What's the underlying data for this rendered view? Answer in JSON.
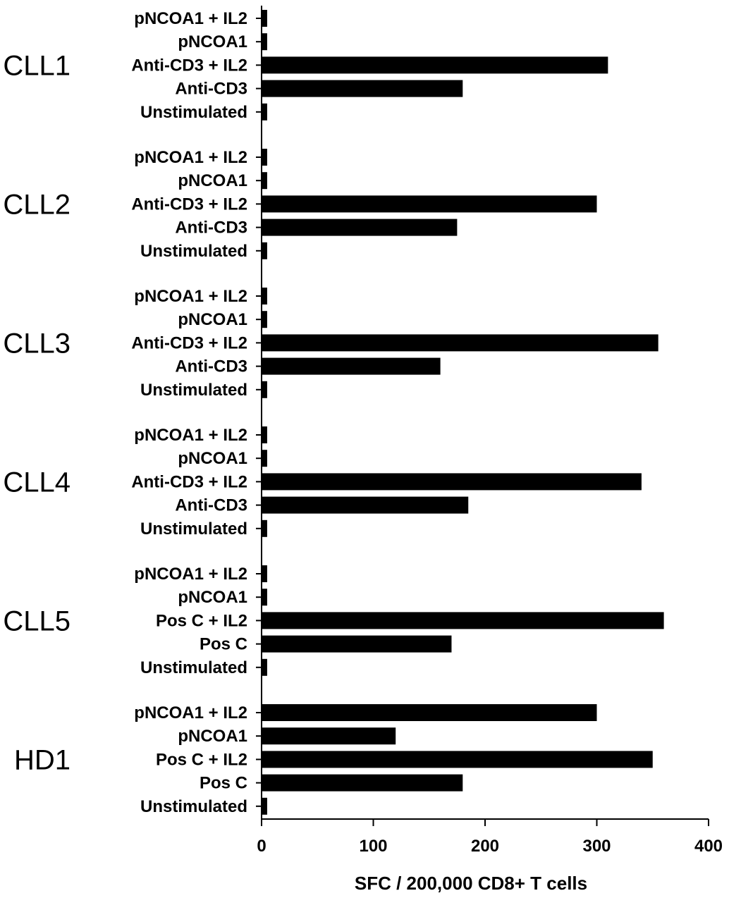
{
  "chart_data": {
    "type": "bar",
    "orientation": "horizontal",
    "xlabel": "SFC / 200,000 CD8+ T cells",
    "xlim": [
      0,
      400
    ],
    "xticks": [
      0,
      100,
      200,
      300,
      400
    ],
    "bar_color": "#000000",
    "groups": [
      {
        "name": "CLL1",
        "categories": [
          "pNCOA1 + IL2",
          "pNCOA1",
          "Anti-CD3 + IL2",
          "Anti-CD3",
          "Unstimulated"
        ],
        "values": [
          5,
          5,
          310,
          180,
          5
        ]
      },
      {
        "name": "CLL2",
        "categories": [
          "pNCOA1 + IL2",
          "pNCOA1",
          "Anti-CD3 + IL2",
          "Anti-CD3",
          "Unstimulated"
        ],
        "values": [
          5,
          5,
          300,
          175,
          5
        ]
      },
      {
        "name": "CLL3",
        "categories": [
          "pNCOA1 + IL2",
          "pNCOA1",
          "Anti-CD3 + IL2",
          "Anti-CD3",
          "Unstimulated"
        ],
        "values": [
          5,
          5,
          355,
          160,
          5
        ]
      },
      {
        "name": "CLL4",
        "categories": [
          "pNCOA1 + IL2",
          "pNCOA1",
          "Anti-CD3 + IL2",
          "Anti-CD3",
          "Unstimulated"
        ],
        "values": [
          5,
          5,
          340,
          185,
          5
        ]
      },
      {
        "name": "CLL5",
        "categories": [
          "pNCOA1 + IL2",
          "pNCOA1",
          "Pos C + IL2",
          "Pos C",
          "Unstimulated"
        ],
        "values": [
          5,
          5,
          360,
          170,
          5
        ]
      },
      {
        "name": "HD1",
        "categories": [
          "pNCOA1 + IL2",
          "pNCOA1",
          "Pos C + IL2",
          "Pos C",
          "Unstimulated"
        ],
        "values": [
          300,
          120,
          350,
          180,
          5
        ]
      }
    ]
  }
}
